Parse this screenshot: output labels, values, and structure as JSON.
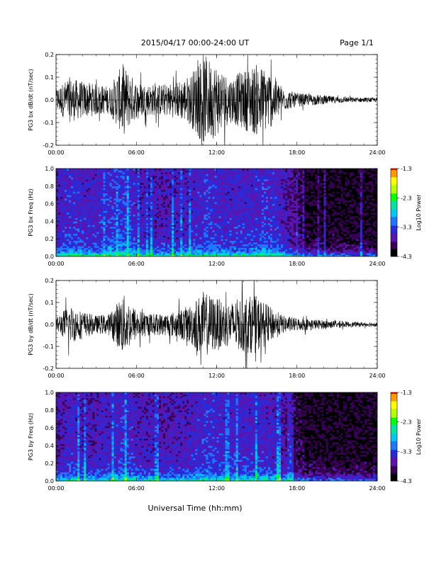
{
  "header": {
    "title": "2015/04/17   00:00-24:00 UT",
    "page": "Page 1/1"
  },
  "footer": {
    "xlabel": "Universal Time (hh:mm)"
  },
  "colors": {
    "trace": "#000000",
    "colormap": [
      "#000000",
      "#3a0058",
      "#5a14b0",
      "#2a2ad8",
      "#1e78ff",
      "#00c8f0",
      "#00e6a0",
      "#00ff00",
      "#b4ff00",
      "#ffff00",
      "#ff9a00",
      "#ff0000"
    ]
  },
  "chart_data": [
    {
      "type": "line",
      "ylabel": "PG3 bx dB/dt (nT/sec)",
      "xlim": [
        0,
        24
      ],
      "ylim": [
        -0.2,
        0.2
      ],
      "ytick_labels": [
        "-0.2",
        "-0.1",
        "0.0",
        "0.1",
        "0.2"
      ],
      "xtick_labels": [
        "00:00",
        "06:00",
        "12:00",
        "18:00",
        "24:00"
      ],
      "series": [
        {
          "x": [
            0,
            1,
            2,
            3,
            4,
            5,
            6,
            7,
            8,
            9,
            10,
            11,
            12,
            13,
            14,
            15,
            16,
            17,
            18,
            19,
            20,
            21,
            22,
            23,
            24
          ],
          "amplitude": [
            0.05,
            0.1,
            0.08,
            0.07,
            0.06,
            0.16,
            0.08,
            0.07,
            0.07,
            0.08,
            0.11,
            0.2,
            0.16,
            0.1,
            0.13,
            0.16,
            0.13,
            0.05,
            0.03,
            0.025,
            0.02,
            0.015,
            0.012,
            0.01,
            0.01
          ]
        }
      ]
    },
    {
      "type": "heatmap",
      "ylabel": "PG3 bx Freq (Hz)",
      "colorbar_label": "Log10 Power",
      "xlim": [
        0,
        24
      ],
      "ylim": [
        0,
        1.0
      ],
      "ytick_labels": [
        "0.0",
        "0.2",
        "0.4",
        "0.6",
        "0.8",
        "1.0"
      ],
      "xtick_labels": [
        "00:00",
        "06:00",
        "12:00",
        "18:00",
        "24:00"
      ],
      "clim": [
        -4.3,
        -1.3
      ],
      "colorbar_ticks": [
        "-1.3",
        "-2.3",
        "-3.3",
        "-4.3"
      ],
      "hourly_level": [
        -3.6,
        -3.4,
        -3.5,
        -3.5,
        -3.4,
        -3.3,
        -3.6,
        -3.6,
        -3.6,
        -3.6,
        -3.5,
        -3.4,
        -3.5,
        -3.5,
        -3.5,
        -3.4,
        -3.5,
        -3.8,
        -4.1,
        -4.1,
        -4.1,
        -4.1,
        -4.1,
        -4.1
      ]
    },
    {
      "type": "line",
      "ylabel": "PG3 by dB/dt (nT/sec)",
      "xlim": [
        0,
        24
      ],
      "ylim": [
        -0.2,
        0.2
      ],
      "ytick_labels": [
        "-0.2",
        "-0.1",
        "0.0",
        "0.1",
        "0.2"
      ],
      "xtick_labels": [
        "00:00",
        "06:00",
        "12:00",
        "18:00",
        "24:00"
      ],
      "series": [
        {
          "x": [
            0,
            1,
            2,
            3,
            4,
            5,
            6,
            7,
            8,
            9,
            10,
            11,
            12,
            13,
            14,
            15,
            16,
            17,
            18,
            19,
            20,
            21,
            22,
            23,
            24
          ],
          "amplitude": [
            0.03,
            0.09,
            0.06,
            0.04,
            0.05,
            0.14,
            0.07,
            0.05,
            0.05,
            0.06,
            0.09,
            0.15,
            0.12,
            0.1,
            0.13,
            0.13,
            0.08,
            0.04,
            0.03,
            0.025,
            0.02,
            0.015,
            0.012,
            0.01,
            0.01
          ]
        }
      ]
    },
    {
      "type": "heatmap",
      "ylabel": "PG3 by Freq (Hz)",
      "colorbar_label": "Log10 Power",
      "xlim": [
        0,
        24
      ],
      "ylim": [
        0,
        1.0
      ],
      "ytick_labels": [
        "0.0",
        "0.2",
        "0.4",
        "0.6",
        "0.8",
        "1.0"
      ],
      "xtick_labels": [
        "00:00",
        "06:00",
        "12:00",
        "18:00",
        "24:00"
      ],
      "clim": [
        -4.3,
        -1.3
      ],
      "colorbar_ticks": [
        "-1.3",
        "-2.3",
        "-3.3",
        "-4.3"
      ],
      "hourly_level": [
        -3.7,
        -3.5,
        -3.6,
        -3.6,
        -3.5,
        -3.4,
        -3.6,
        -3.6,
        -3.6,
        -3.6,
        -3.5,
        -3.4,
        -3.5,
        -3.5,
        -3.5,
        -3.5,
        -3.6,
        -3.9,
        -4.1,
        -4.1,
        -4.1,
        -4.1,
        -4.1,
        -4.1
      ]
    }
  ]
}
